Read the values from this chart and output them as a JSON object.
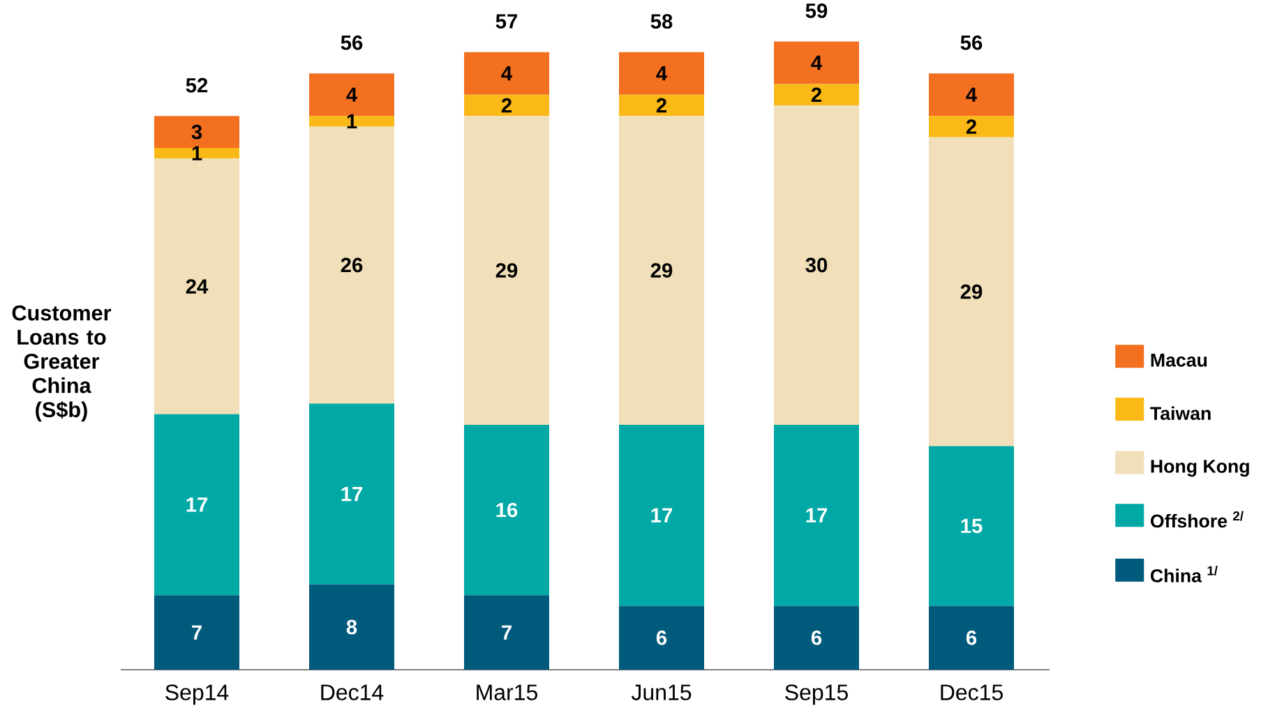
{
  "chart_data": {
    "type": "bar",
    "stacked": true,
    "ylabel": "Customer Loans to Greater China (S$b)",
    "categories": [
      "Sep14",
      "Dec14",
      "Mar15",
      "Jun15",
      "Sep15",
      "Dec15"
    ],
    "series": [
      {
        "name": "China $^{1/}$",
        "color": "#005a7c",
        "values": [
          7,
          8,
          7,
          6,
          6,
          6
        ]
      },
      {
        "name": "Offshore $^{2/}$",
        "color": "#00a9a5",
        "values": [
          17,
          17,
          16,
          17,
          17,
          15
        ]
      },
      {
        "name": "Hong Kong",
        "color": "#f0dfb8",
        "values": [
          24,
          26,
          29,
          29,
          30,
          29
        ]
      },
      {
        "name": "Taiwan",
        "color": "#fbb917",
        "values": [
          1,
          1,
          2,
          2,
          2,
          2
        ]
      },
      {
        "name": "Macau",
        "color": "#f37021",
        "values": [
          3,
          4,
          4,
          4,
          4,
          4
        ]
      }
    ],
    "totals": [
      "52",
      "56",
      "57",
      "58",
      "59",
      "56"
    ],
    "data_labels": true,
    "legend": "right"
  }
}
